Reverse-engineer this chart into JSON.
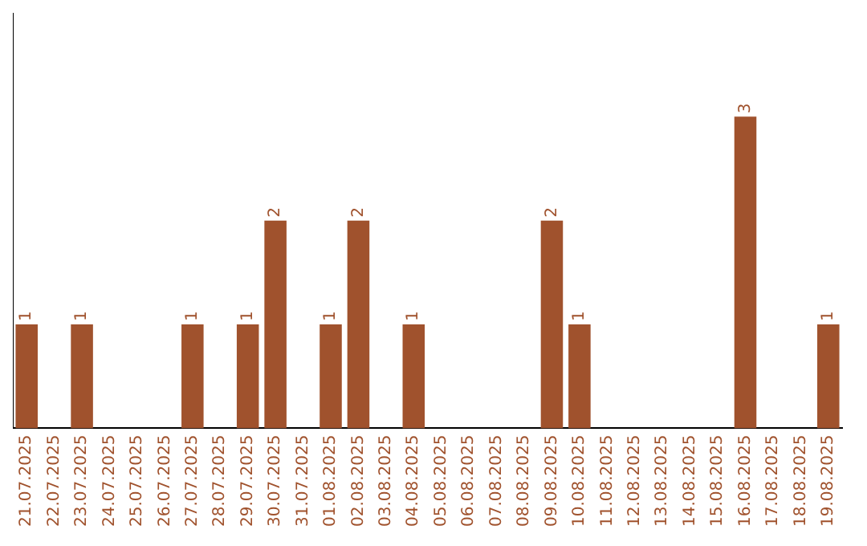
{
  "chart_data": {
    "type": "bar",
    "categories": [
      "21.07.2025",
      "22.07.2025",
      "23.07.2025",
      "24.07.2025",
      "25.07.2025",
      "26.07.2025",
      "27.07.2025",
      "28.07.2025",
      "29.07.2025",
      "30.07.2025",
      "31.07.2025",
      "01.08.2025",
      "02.08.2025",
      "03.08.2025",
      "04.08.2025",
      "05.08.2025",
      "06.08.2025",
      "07.08.2025",
      "08.08.2025",
      "09.08.2025",
      "10.08.2025",
      "11.08.2025",
      "12.08.2025",
      "13.08.2025",
      "14.08.2025",
      "15.08.2025",
      "16.08.2025",
      "17.08.2025",
      "18.08.2025",
      "19.08.2025"
    ],
    "values": [
      1,
      0,
      1,
      0,
      0,
      0,
      1,
      0,
      1,
      2,
      0,
      1,
      2,
      0,
      1,
      0,
      0,
      0,
      0,
      2,
      1,
      0,
      0,
      0,
      0,
      0,
      3,
      0,
      0,
      1
    ],
    "value_labels": [
      "1",
      null,
      "1",
      null,
      null,
      null,
      "1",
      null,
      "1",
      "2",
      null,
      "1",
      "2",
      null,
      "1",
      null,
      null,
      null,
      null,
      "2",
      "1",
      null,
      null,
      null,
      null,
      null,
      "3",
      null,
      null,
      "1"
    ],
    "color": "#a0522d",
    "grid": false,
    "legend": false
  }
}
